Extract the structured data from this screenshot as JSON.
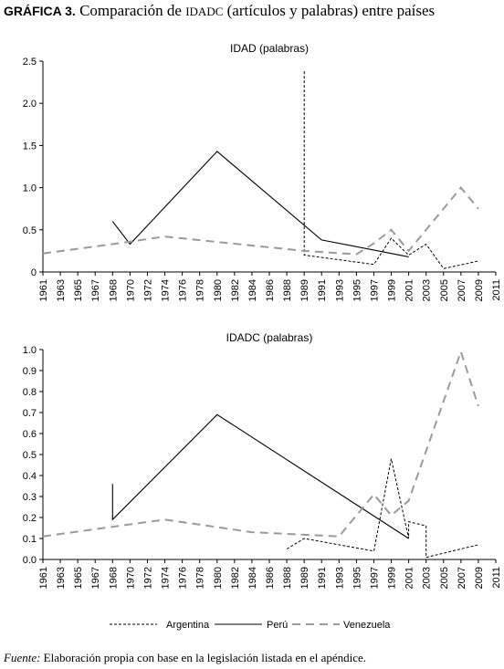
{
  "header": {
    "label": "GRÁFICA 3.",
    "text_before": " Comparación de ",
    "acronym": "IDADC",
    "text_after": " (artículos y palabras) entre países"
  },
  "footer": {
    "source_label": "Fuente:",
    "source_text": " Elaboración propia con base en la legislación listada en el apéndice."
  },
  "legend": [
    {
      "name": "Argentina",
      "style": "dotted"
    },
    {
      "name": "Perú",
      "style": "solid"
    },
    {
      "name": "Venezuela",
      "style": "dashed"
    }
  ],
  "chart_data": [
    {
      "type": "line",
      "title": "IDAD (palabras)",
      "x_ticks": [
        "1961",
        "1963",
        "1965",
        "1967",
        "1968",
        "1970",
        "1972",
        "1974",
        "1976",
        "1978",
        "1980",
        "1982",
        "1984",
        "1986",
        "1988",
        "1989",
        "1991",
        "1993",
        "1995",
        "1997",
        "1999",
        "2001",
        "2003",
        "2005",
        "2007",
        "2009",
        "2011"
      ],
      "y_ticks": [
        "0",
        "0.5",
        "1.0",
        "1.5",
        "2.0",
        "2.5"
      ],
      "ylim": [
        0,
        2.5
      ],
      "series": [
        {
          "name": "Argentina",
          "points": [
            [
              "1989",
              2.38
            ],
            [
              "1989",
              0.2
            ],
            [
              "1997",
              0.09
            ],
            [
              "1999",
              0.4
            ],
            [
              "2001",
              0.2
            ],
            [
              "2003",
              0.33
            ],
            [
              "2005",
              0.04
            ],
            [
              "2009",
              0.13
            ]
          ]
        },
        {
          "name": "Perú",
          "points": [
            [
              "1968",
              0.6
            ],
            [
              "1970",
              0.33
            ],
            [
              "1980",
              1.43
            ],
            [
              "1991",
              0.38
            ],
            [
              "2001",
              0.18
            ]
          ]
        },
        {
          "name": "Venezuela",
          "points": [
            [
              "1961",
              0.22
            ],
            [
              "1968",
              0.33
            ],
            [
              "1974",
              0.42
            ],
            [
              "1989",
              0.25
            ],
            [
              "1995",
              0.21
            ],
            [
              "1997",
              0.34
            ],
            [
              "1999",
              0.5
            ],
            [
              "2001",
              0.25
            ],
            [
              "2007",
              1.0
            ],
            [
              "2009",
              0.75
            ]
          ]
        }
      ]
    },
    {
      "type": "line",
      "title": "IDADC (palabras)",
      "x_ticks": [
        "1961",
        "1963",
        "1965",
        "1967",
        "1968",
        "1970",
        "1972",
        "1974",
        "1976",
        "1978",
        "1980",
        "1982",
        "1984",
        "1986",
        "1988",
        "1989",
        "1991",
        "1993",
        "1995",
        "1997",
        "1999",
        "2001",
        "2003",
        "2005",
        "2007",
        "2009",
        "2011"
      ],
      "y_ticks": [
        "0.0",
        "0.1",
        "0.2",
        "0.3",
        "0.4",
        "0.5",
        "0.6",
        "0.7",
        "0.8",
        "0.9",
        "1.0"
      ],
      "ylim": [
        0,
        1.0
      ],
      "series": [
        {
          "name": "Argentina",
          "points": [
            [
              "1988",
              0.05
            ],
            [
              "1989",
              0.1
            ],
            [
              "1997",
              0.04
            ],
            [
              "1999",
              0.48
            ],
            [
              "2001",
              0.1
            ],
            [
              "2001",
              0.18
            ],
            [
              "2003",
              0.16
            ],
            [
              "2003",
              0.01
            ],
            [
              "2009",
              0.07
            ]
          ]
        },
        {
          "name": "Perú",
          "points": [
            [
              "1968",
              0.36
            ],
            [
              "1968",
              0.19
            ],
            [
              "1980",
              0.69
            ],
            [
              "2001",
              0.1
            ]
          ]
        },
        {
          "name": "Venezuela",
          "points": [
            [
              "1961",
              0.11
            ],
            [
              "1974",
              0.19
            ],
            [
              "1984",
              0.13
            ],
            [
              "1993",
              0.11
            ],
            [
              "1997",
              0.31
            ],
            [
              "1999",
              0.21
            ],
            [
              "2001",
              0.28
            ],
            [
              "2007",
              0.99
            ],
            [
              "2009",
              0.73
            ]
          ]
        }
      ]
    }
  ]
}
